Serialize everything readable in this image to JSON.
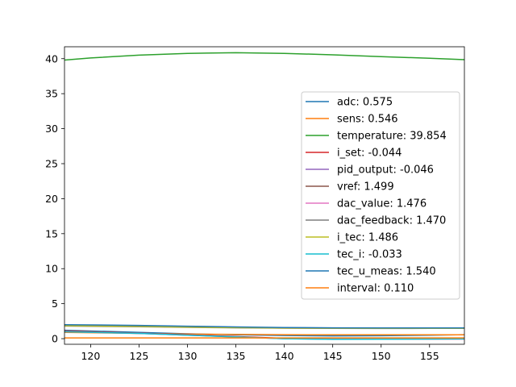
{
  "chart_data": {
    "type": "line",
    "title": "",
    "xlabel": "",
    "ylabel": "",
    "xlim": [
      117.3,
      158.6
    ],
    "ylim": [
      -0.8,
      41.7
    ],
    "xticks": [
      120,
      125,
      130,
      135,
      140,
      145,
      150,
      155
    ],
    "yticks": [
      0,
      5,
      10,
      15,
      20,
      25,
      30,
      35,
      40
    ],
    "grid": false,
    "legend_position": "center-right",
    "series": [
      {
        "name": "adc: 0.575",
        "color": "#1f77b4",
        "x": [
          117.3,
          125,
          130,
          135,
          140,
          145,
          150,
          155,
          158.6
        ],
        "y": [
          1.2,
          0.9,
          0.7,
          0.55,
          0.45,
          0.4,
          0.42,
          0.5,
          0.575
        ]
      },
      {
        "name": "sens: 0.546",
        "color": "#ff7f0e",
        "x": [
          117.3,
          125,
          130,
          135,
          140,
          145,
          150,
          155,
          158.6
        ],
        "y": [
          0.9,
          0.75,
          0.65,
          0.6,
          0.57,
          0.55,
          0.55,
          0.55,
          0.546
        ]
      },
      {
        "name": "temperature: 39.854",
        "color": "#2ca02c",
        "x": [
          117.3,
          120,
          125,
          130,
          135,
          140,
          145,
          150,
          155,
          158.6
        ],
        "y": [
          39.8,
          40.1,
          40.5,
          40.75,
          40.85,
          40.75,
          40.55,
          40.3,
          40.05,
          39.854
        ]
      },
      {
        "name": "i_set: -0.044",
        "color": "#d62728",
        "x": [
          117.3,
          125,
          130,
          135,
          140,
          145,
          150,
          155,
          158.6
        ],
        "y": [
          1.1,
          0.8,
          0.55,
          0.3,
          0.05,
          -0.05,
          -0.05,
          -0.05,
          -0.044
        ]
      },
      {
        "name": "pid_output: -0.046",
        "color": "#9467bd",
        "x": [
          117.3,
          125,
          130,
          135,
          140,
          145,
          150,
          155,
          158.6
        ],
        "y": [
          1.0,
          0.75,
          0.5,
          0.25,
          0.0,
          -0.08,
          -0.06,
          -0.05,
          -0.046
        ]
      },
      {
        "name": "vref: 1.499",
        "color": "#8c564b",
        "x": [
          117.3,
          125,
          130,
          135,
          140,
          145,
          150,
          155,
          158.6
        ],
        "y": [
          1.9,
          1.8,
          1.7,
          1.6,
          1.55,
          1.5,
          1.5,
          1.5,
          1.499
        ]
      },
      {
        "name": "dac_value: 1.476",
        "color": "#e377c2",
        "x": [
          117.3,
          125,
          130,
          135,
          140,
          145,
          150,
          155,
          158.6
        ],
        "y": [
          1.85,
          1.75,
          1.65,
          1.58,
          1.52,
          1.48,
          1.47,
          1.475,
          1.476
        ]
      },
      {
        "name": "dac_feedback: 1.470",
        "color": "#7f7f7f",
        "x": [
          117.3,
          125,
          130,
          135,
          140,
          145,
          150,
          155,
          158.6
        ],
        "y": [
          1.8,
          1.7,
          1.62,
          1.55,
          1.5,
          1.47,
          1.46,
          1.468,
          1.47
        ]
      },
      {
        "name": "i_tec: 1.486",
        "color": "#bcbd22",
        "x": [
          117.3,
          125,
          130,
          135,
          140,
          145,
          150,
          155,
          158.6
        ],
        "y": [
          1.85,
          1.75,
          1.65,
          1.57,
          1.52,
          1.49,
          1.48,
          1.485,
          1.486
        ]
      },
      {
        "name": "tec_i: -0.033",
        "color": "#17becf",
        "x": [
          117.3,
          125,
          130,
          135,
          140,
          145,
          150,
          155,
          158.6
        ],
        "y": [
          1.0,
          0.75,
          0.5,
          0.25,
          0.0,
          -0.1,
          -0.08,
          -0.05,
          -0.033
        ]
      },
      {
        "name": "tec_u_meas: 1.540",
        "color": "#1f77b4",
        "x": [
          117.3,
          125,
          130,
          135,
          140,
          145,
          150,
          155,
          158.6
        ],
        "y": [
          2.0,
          1.9,
          1.78,
          1.68,
          1.6,
          1.55,
          1.53,
          1.535,
          1.54
        ]
      },
      {
        "name": "interval: 0.110",
        "color": "#ff7f0e",
        "x": [
          117.3,
          125,
          130,
          135,
          140,
          145,
          150,
          155,
          158.6
        ],
        "y": [
          0.11,
          0.11,
          0.11,
          0.11,
          0.11,
          0.11,
          0.11,
          0.11,
          0.11
        ]
      }
    ]
  }
}
